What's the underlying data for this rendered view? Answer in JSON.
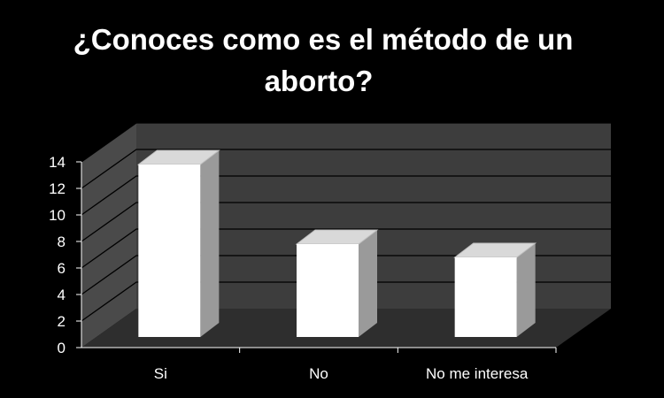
{
  "chart_data": {
    "type": "bar",
    "title_lines": [
      "¿Conoces como es el método de un",
      "aborto?"
    ],
    "categories": [
      "Si",
      "No",
      "No me interesa"
    ],
    "values": [
      13,
      7,
      6
    ],
    "ylim": [
      0,
      14
    ],
    "yticks": [
      "0",
      "2",
      "4",
      "6",
      "8",
      "10",
      "12",
      "14"
    ],
    "xlabel": "",
    "ylabel": "",
    "grid": true,
    "legend": "none",
    "style": "3d",
    "colors": {
      "background": "#000000",
      "back_wall": "#3d3d3d",
      "side_wall": "#4a4a4a",
      "floor": "#2e2e2e",
      "gridline": "#000000",
      "bar_front": "#ffffff",
      "bar_top": "#d9d9d9",
      "bar_side": "#9a9a9a",
      "text": "#ffffff"
    }
  }
}
